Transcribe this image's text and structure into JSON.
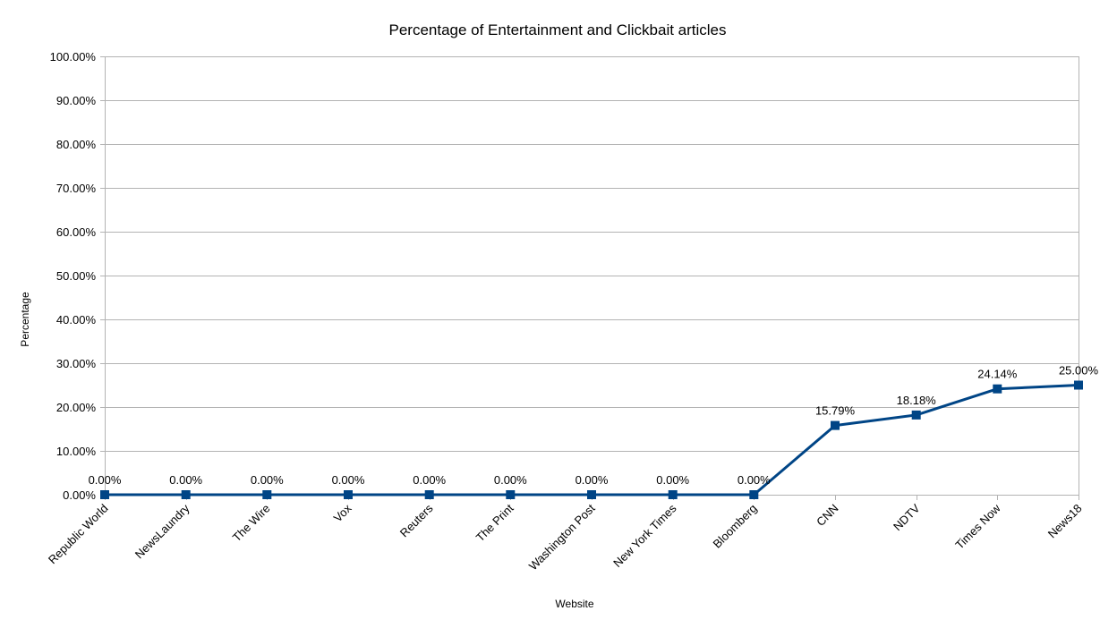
{
  "chart_data": {
    "type": "line",
    "title": "Percentage of Entertainment and Clickbait articles",
    "xlabel": "Website",
    "ylabel": "Percentage",
    "categories": [
      "Republic World",
      "NewsLaundry",
      "The Wire",
      "Vox",
      "Reuters",
      "The Print",
      "Washington Post",
      "New York Times",
      "Bloomberg",
      "CNN",
      "NDTV",
      "Times Now",
      "News18"
    ],
    "series": [
      {
        "values": [
          0,
          0,
          0,
          0,
          0,
          0,
          0,
          0,
          0,
          15.79,
          18.18,
          24.14,
          25.0
        ],
        "data_labels": [
          "0.00%",
          "0.00%",
          "0.00%",
          "0.00%",
          "0.00%",
          "0.00%",
          "0.00%",
          "0.00%",
          "0.00%",
          "15.79%",
          "18.18%",
          "24.14%",
          "25.00%"
        ],
        "color": "#004586",
        "marker": "square"
      }
    ],
    "ylim": [
      0,
      100
    ],
    "yticks": [
      0,
      10,
      20,
      30,
      40,
      50,
      60,
      70,
      80,
      90,
      100
    ],
    "ytick_labels": [
      "0.00%",
      "10.00%",
      "20.00%",
      "30.00%",
      "40.00%",
      "50.00%",
      "60.00%",
      "70.00%",
      "80.00%",
      "90.00%",
      "100.00%"
    ],
    "grid": true,
    "legend": "none",
    "gridline_color": "#b3b3b3"
  }
}
